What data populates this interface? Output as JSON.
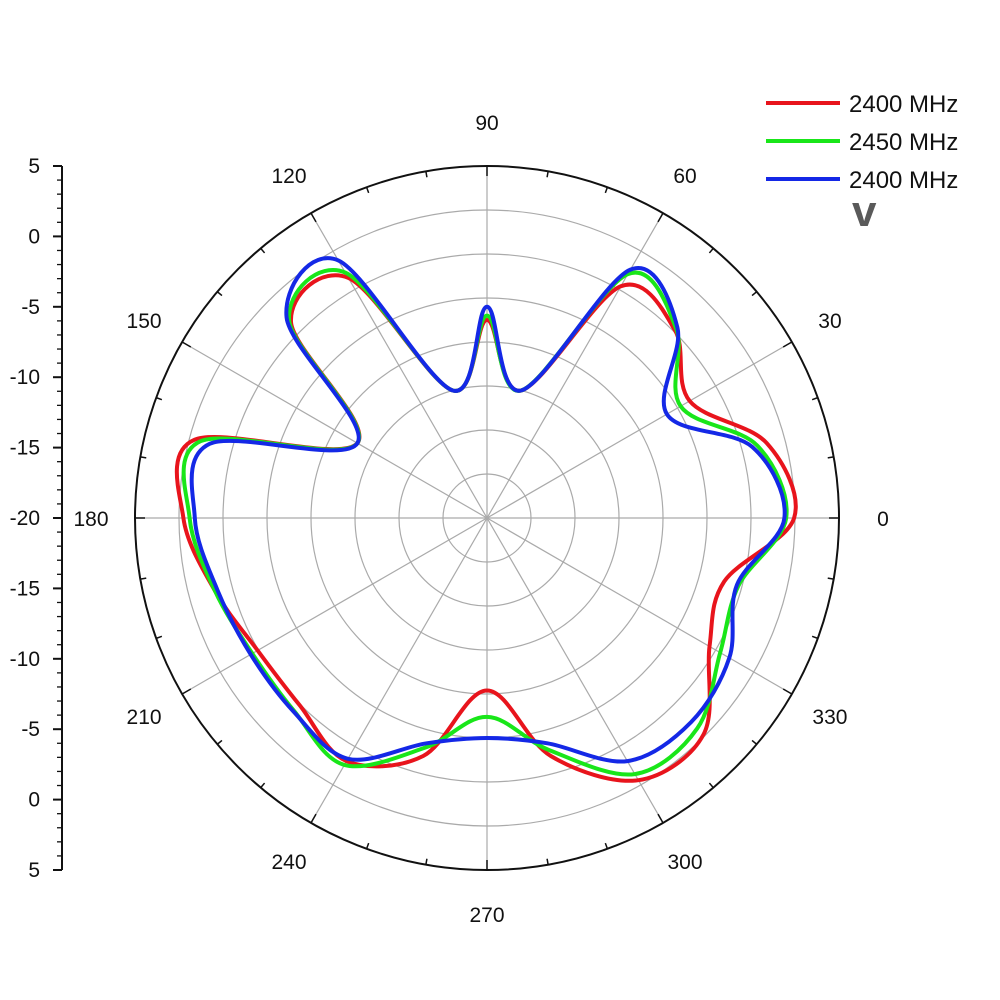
{
  "chart_data": {
    "type": "polar-line",
    "panel_label": "v",
    "radial_axis": {
      "range": [
        -35,
        5
      ],
      "tick_values": [
        5,
        0,
        -5,
        -10,
        -15,
        -20,
        -15,
        -10,
        -5,
        0,
        5
      ],
      "tick_labels": [
        "5",
        "0",
        "-5",
        "-10",
        "-15",
        "-20",
        "-15",
        "-10",
        "-5",
        "0",
        "5"
      ]
    },
    "angular_axis": {
      "labels": [
        "0",
        "30",
        "60",
        "90",
        "120",
        "150",
        "180",
        "210",
        "240",
        "270",
        "300",
        "330"
      ],
      "gridline_step_deg": 30
    },
    "grid": true,
    "legend_position": "top-right",
    "theta_deg": [
      0,
      15,
      30,
      45,
      60,
      75,
      90,
      105,
      120,
      135,
      150,
      165,
      180,
      195,
      210,
      225,
      240,
      255,
      270,
      285,
      300,
      315,
      330,
      345,
      360
    ],
    "series": [
      {
        "name": "2400 MHz",
        "color": "#e8141c",
        "r": [
          -0.1,
          -2.1,
          -8.4,
          -4.8,
          -4.6,
          -20,
          -12.5,
          -20,
          -3.5,
          -3.5,
          -18,
          -0.6,
          -0.5,
          -3.0,
          -4.9,
          -4.9,
          -3.1,
          -7.0,
          -15.4,
          -7.0,
          -0.6,
          -0.2,
          -5.8,
          -7.1,
          -0.1
        ]
      },
      {
        "name": "2450 MHz",
        "color": "#19e619",
        "r": [
          -1.0,
          -3.2,
          -9.6,
          -4.6,
          -3.0,
          -20,
          -12.0,
          -20,
          -2.8,
          -3.2,
          -18,
          -1.3,
          -1.2,
          -3.0,
          -4.2,
          -4.0,
          -2.6,
          -8.0,
          -12.4,
          -7.7,
          -1.4,
          -1.2,
          -4.4,
          -5.4,
          -1.0
        ]
      },
      {
        "name": "2400 MHz",
        "color": "#1428e6",
        "r": [
          -1.2,
          -3.8,
          -11.4,
          -4.4,
          -2.4,
          -20,
          -11.0,
          -20,
          -1.2,
          -2.8,
          -18,
          -2.4,
          -1.8,
          -3.3,
          -4.0,
          -3.9,
          -3.4,
          -8.5,
          -10.0,
          -8.5,
          -3.1,
          -2.2,
          -3.2,
          -5.6,
          -1.2
        ]
      }
    ]
  }
}
